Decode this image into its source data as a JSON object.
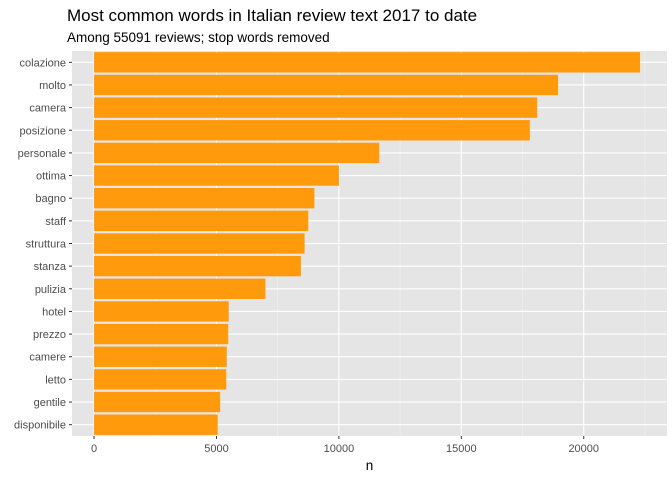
{
  "chart_data": {
    "type": "bar",
    "orientation": "horizontal",
    "title": "Most common words in Italian review text 2017 to date",
    "subtitle": "Among 55091 reviews; stop words removed",
    "xlabel": "n",
    "ylabel": "",
    "categories": [
      "colazione",
      "molto",
      "camera",
      "posizione",
      "personale",
      "ottima",
      "bagno",
      "staff",
      "struttura",
      "stanza",
      "pulizia",
      "hotel",
      "prezzo",
      "camere",
      "letto",
      "gentile",
      "disponibile"
    ],
    "values": [
      22300,
      18950,
      18100,
      17800,
      11650,
      10000,
      9000,
      8750,
      8600,
      8450,
      7000,
      5500,
      5480,
      5420,
      5400,
      5150,
      5050
    ],
    "xlim": [
      -900,
      23400
    ],
    "x_ticks": [
      0,
      5000,
      10000,
      15000,
      20000
    ],
    "x_tick_labels": [
      "0",
      "5000",
      "10000",
      "15000",
      "20000"
    ],
    "grid": true,
    "colors": {
      "bar": "#FF9A0D",
      "panel": "#E5E5E5",
      "grid_major": "#FFFFFF",
      "grid_minor": "#F2F2F2"
    }
  }
}
